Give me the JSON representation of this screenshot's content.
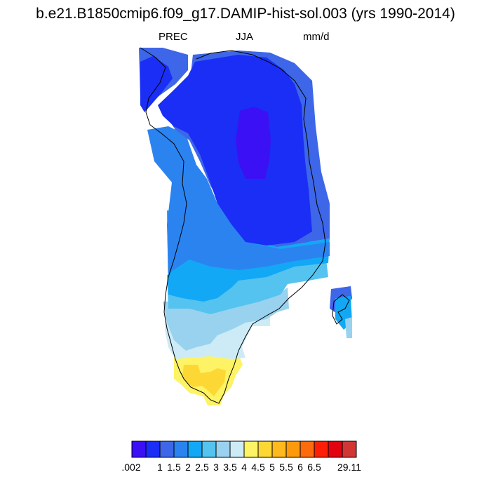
{
  "title": "b.e21.B1850cmip6.f09_g17.DAMIP-hist-sol.003 (yrs 1990-2014)",
  "subtitles": {
    "left": "PREC",
    "center": "JJA",
    "right": "mm/d"
  },
  "colorbar": {
    "colors": [
      "#3b10f5",
      "#1a2ef5",
      "#3d66e8",
      "#2b83f0",
      "#12a8f5",
      "#55c3ef",
      "#99d2ee",
      "#cdebf6",
      "#fdf364",
      "#fdd835",
      "#fdb91d",
      "#fd9a0c",
      "#fd6b0c",
      "#fd1f05",
      "#e30210",
      "#d23632"
    ],
    "labels": [
      ".002",
      "1",
      "1.5",
      "2",
      "2.5",
      "3",
      "3.5",
      "4",
      "4.5",
      "5",
      "5.5",
      "6",
      "6.5",
      "29.11"
    ]
  },
  "map": {
    "region": "Greenland",
    "legend_levels_mm_per_day": [
      0.002,
      1,
      1.5,
      2,
      2.5,
      3,
      3.5,
      4,
      4.5,
      5,
      5.5,
      6,
      6.5,
      29.11
    ]
  }
}
